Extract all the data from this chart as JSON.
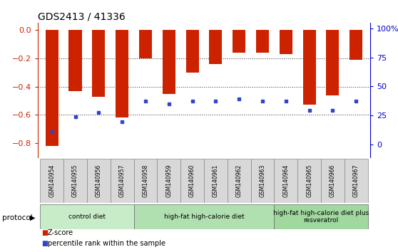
{
  "title": "GDS2413 / 41336",
  "samples": [
    "GSM140954",
    "GSM140955",
    "GSM140956",
    "GSM140957",
    "GSM140958",
    "GSM140959",
    "GSM140960",
    "GSM140961",
    "GSM140962",
    "GSM140963",
    "GSM140964",
    "GSM140965",
    "GSM140966",
    "GSM140967"
  ],
  "zscore": [
    -0.82,
    -0.43,
    -0.47,
    -0.62,
    -0.2,
    -0.45,
    -0.3,
    -0.24,
    -0.16,
    -0.16,
    -0.17,
    -0.53,
    -0.46,
    -0.21
  ],
  "percentile_rank": [
    20,
    32,
    35,
    28,
    44,
    42,
    44,
    44,
    46,
    44,
    44,
    37,
    37,
    44
  ],
  "zscore_color": "#cc2200",
  "percentile_color": "#3344cc",
  "ylim_left": [
    -0.9,
    0.05
  ],
  "ylim_right": [
    -11.25,
    105
  ],
  "yticks_left": [
    0.0,
    -0.2,
    -0.4,
    -0.6,
    -0.8
  ],
  "yticks_right": [
    0,
    25,
    50,
    75,
    100
  ],
  "ytick_labels_right": [
    "0",
    "25",
    "50",
    "75",
    "100%"
  ],
  "bar_width": 0.55,
  "protocol_groups": [
    {
      "label": "control diet",
      "start": 0,
      "end": 4,
      "color": "#c8ecc8"
    },
    {
      "label": "high-fat high-calorie diet",
      "start": 4,
      "end": 10,
      "color": "#b0e0b0"
    },
    {
      "label": "high-fat high-calorie diet plus\nresveratrol",
      "start": 10,
      "end": 14,
      "color": "#a0d8a0"
    }
  ],
  "zscore_label_color": "#cc2200",
  "pct_label_color": "#0000cc",
  "tick_label_bg": "#d8d8d8",
  "legend_items": [
    {
      "label": "Z-score",
      "color": "#cc2200"
    },
    {
      "label": "percentile rank within the sample",
      "color": "#3344cc"
    }
  ]
}
